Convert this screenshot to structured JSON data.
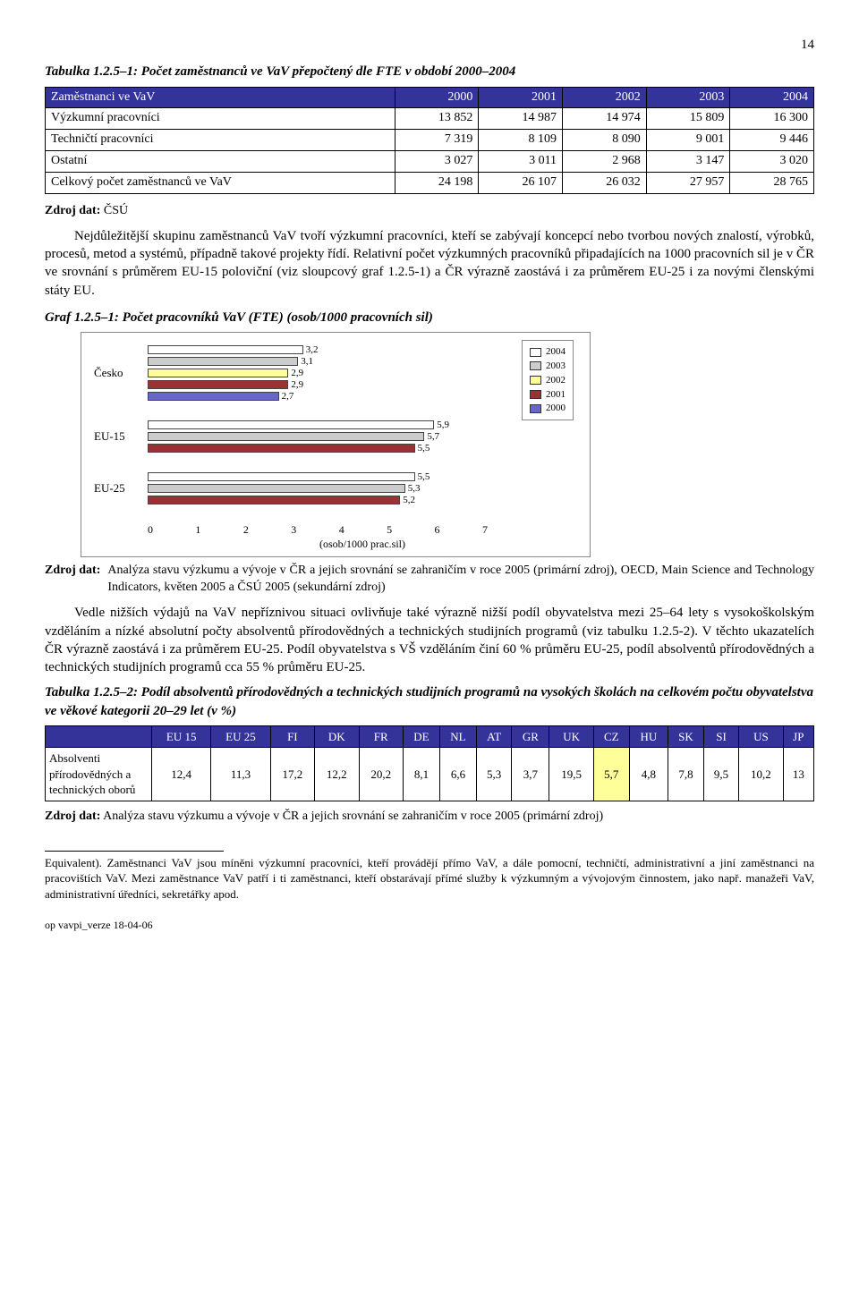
{
  "page_number": "14",
  "table1": {
    "title": "Tabulka 1.2.5–1: Počet zaměstnanců ve VaV přepočtený dle FTE v období 2000–2004",
    "header": [
      "Zaměstnanci ve VaV",
      "2000",
      "2001",
      "2002",
      "2003",
      "2004"
    ],
    "rows": [
      [
        "Výzkumní pracovníci",
        "13 852",
        "14 987",
        "14 974",
        "15 809",
        "16 300"
      ],
      [
        "Techničtí pracovníci",
        "7 319",
        "8 109",
        "8 090",
        "9 001",
        "9 446"
      ],
      [
        "Ostatní",
        "3 027",
        "3 011",
        "2 968",
        "3 147",
        "3 020"
      ],
      [
        "Celkový počet zaměstnanců ve VaV",
        "24 198",
        "26 107",
        "26 032",
        "27 957",
        "28 765"
      ]
    ]
  },
  "src1": {
    "label": "Zdroj dat:",
    "text": "ČSÚ"
  },
  "para1": "Nejdůležitější skupinu zaměstnanců VaV tvoří výzkumní pracovníci, kteří se zabývají koncepcí nebo tvorbou nových znalostí, výrobků, procesů, metod a systémů, případně takové projekty řídí. Relativní počet výzkumných pracovníků připadajících na 1000 pracovních sil je v ČR ve srovnání s průměrem EU-15 poloviční (viz sloupcový graf 1.2.5-1) a ČR výrazně zaostává i za průměrem EU-25 i za novými členskými státy EU.",
  "chart": {
    "title": "Graf 1.2.5–1: Počet pracovníků VaV (FTE) (osob/1000 pracovních sil)",
    "type": "bar",
    "xmax": 7,
    "xticks": [
      "0",
      "1",
      "2",
      "3",
      "4",
      "5",
      "6",
      "7"
    ],
    "xcaption": "(osob/1000 prac.sil)",
    "legend": [
      {
        "label": "2004",
        "color": "#ffffff"
      },
      {
        "label": "2003",
        "color": "#cccccc"
      },
      {
        "label": "2002",
        "color": "#ffff99"
      },
      {
        "label": "2001",
        "color": "#993333"
      },
      {
        "label": "2000",
        "color": "#6666cc"
      }
    ],
    "groups": [
      {
        "name": "Česko",
        "bars": [
          {
            "color": "#ffffff",
            "value": 3.2,
            "label": "3,2"
          },
          {
            "color": "#cccccc",
            "value": 3.1,
            "label": "3,1"
          },
          {
            "color": "#ffff99",
            "value": 2.9,
            "label": "2,9"
          },
          {
            "color": "#993333",
            "value": 2.9,
            "label": "2,9"
          },
          {
            "color": "#6666cc",
            "value": 2.7,
            "label": "2,7"
          }
        ]
      },
      {
        "name": "EU-15",
        "bars": [
          {
            "color": "#ffffff",
            "value": 5.9,
            "label": "5,9"
          },
          {
            "color": "#cccccc",
            "value": 5.7,
            "label": "5,7"
          },
          {
            "color": "#993333",
            "value": 5.5,
            "label": "5,5"
          }
        ]
      },
      {
        "name": "EU-25",
        "bars": [
          {
            "color": "#ffffff",
            "value": 5.5,
            "label": "5,5"
          },
          {
            "color": "#cccccc",
            "value": 5.3,
            "label": "5,3"
          },
          {
            "color": "#993333",
            "value": 5.2,
            "label": "5,2"
          }
        ]
      }
    ]
  },
  "src2": {
    "label": "Zdroj dat:",
    "text": "Analýza stavu výzkumu a vývoje v ČR a jejich srovnání se zahraničím v roce 2005 (primární zdroj), OECD, Main Science and Technology Indicators, květen 2005 a ČSÚ 2005 (sekundární zdroj)"
  },
  "para2": "Vedle nižších výdajů na VaV nepříznivou situaci ovlivňuje také výrazně nižší podíl obyvatelstva mezi 25–64 lety s vysokoškolským vzděláním a nízké absolutní počty absolventů přírodovědných a technických studijních programů (viz tabulku 1.2.5-2). V těchto ukazatelích ČR výrazně zaostává i za průměrem EU-25. Podíl obyvatelstva s VŠ vzděláním činí 60 % průměru EU-25, podíl absolventů přírodovědných a technických studijních programů cca 55 % průměru EU-25.",
  "table2": {
    "title": "Tabulka 1.2.5–2: Podíl absolventů přírodovědných a technických studijních programů na vysokých školách na celkovém počtu obyvatelstva ve věkové kategorii 20–29 let (v %)",
    "header": [
      "",
      "EU 15",
      "EU 25",
      "FI",
      "DK",
      "FR",
      "DE",
      "NL",
      "AT",
      "GR",
      "UK",
      "CZ",
      "HU",
      "SK",
      "SI",
      "US",
      "JP"
    ],
    "row_label": "Absolventi přírodovědných a technických oborů",
    "row": [
      "12,4",
      "11,3",
      "17,2",
      "12,2",
      "20,2",
      "8,1",
      "6,6",
      "5,3",
      "3,7",
      "19,5",
      "5,7",
      "4,8",
      "7,8",
      "9,5",
      "10,2",
      "13"
    ],
    "highlight_col": 10
  },
  "src3": {
    "label": "Zdroj dat:",
    "text": "Analýza stavu výzkumu a vývoje v ČR a jejich srovnání se zahraničím v roce 2005 (primární zdroj)"
  },
  "footnote": "Equivalent). Zaměstnanci VaV jsou míněni výzkumní pracovníci, kteří provádějí přímo VaV, a dále pomocní, techničtí, administrativní a jiní zaměstnanci na pracovištích VaV. Mezi zaměstnance VaV patří i ti zaměstnanci, kteří obstarávají přímé služby k výzkumným a vývojovým činnostem, jako např. manažeři VaV, administrativní úředníci, sekretářky apod.",
  "footer": "op vavpi_verze 18-04-06"
}
